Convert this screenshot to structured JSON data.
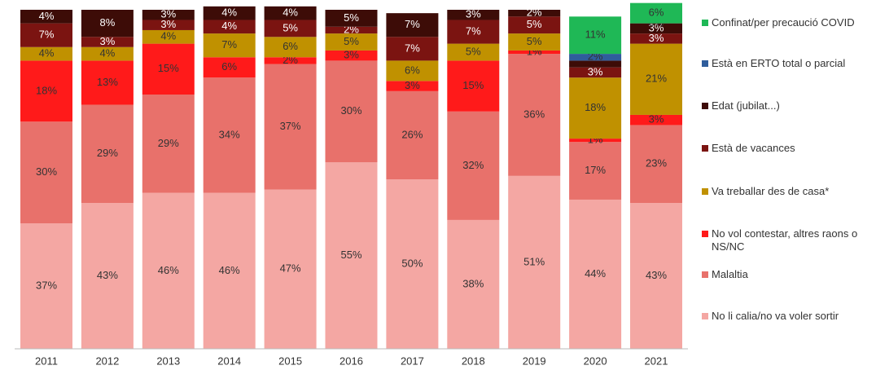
{
  "chart_data": {
    "type": "stacked_bar",
    "categories": [
      "2011",
      "2012",
      "2013",
      "2014",
      "2015",
      "2016",
      "2017",
      "2018",
      "2019",
      "2020",
      "2021"
    ],
    "ylim": [
      0,
      100
    ],
    "series": [
      {
        "name": "No li calia/no va voler sortir",
        "color": "#f4a7a3",
        "values": [
          37,
          43,
          46,
          46,
          47,
          55,
          50,
          38,
          51,
          44,
          43
        ],
        "value_labels": [
          "37%",
          "43%",
          "46%",
          "46%",
          "47%",
          "55%",
          "50%",
          "38%",
          "51%",
          "44%",
          "43%"
        ]
      },
      {
        "name": "Malaltia",
        "color": "#e8716b",
        "values": [
          30,
          29,
          29,
          34,
          37,
          30,
          26,
          32,
          36,
          17,
          23
        ],
        "value_labels": [
          "30%",
          "29%",
          "29%",
          "34%",
          "37%",
          "30%",
          "26%",
          "32%",
          "36%",
          "17%",
          "23%"
        ]
      },
      {
        "name": "No vol contestar, altres raons o NS/NC",
        "color": "#ff1a1a",
        "values": [
          18,
          13,
          15,
          6,
          2,
          3,
          3,
          15,
          1,
          1,
          3
        ],
        "value_labels": [
          "18%",
          "13%",
          "15%",
          "6%",
          "2%",
          "3%",
          "3%",
          "15%",
          "1%",
          "1%",
          "3%"
        ]
      },
      {
        "name": "Va treballar des de casa*",
        "color": "#c09100",
        "values": [
          4,
          4,
          4,
          7,
          6,
          5,
          6,
          5,
          5,
          18,
          21
        ],
        "value_labels": [
          "4%",
          "4%",
          "4%",
          "7%",
          "6%",
          "5%",
          "6%",
          "5%",
          "5%",
          "18%",
          "21%"
        ]
      },
      {
        "name": "Està de vacances",
        "color": "#7b1411",
        "values": [
          7,
          3,
          3,
          4,
          5,
          2,
          7,
          7,
          5,
          3,
          3
        ],
        "value_labels": [
          "7%",
          "3%",
          "3%",
          "4%",
          "5%",
          "2%",
          "7%",
          "7%",
          "5%",
          "3%",
          "3%"
        ]
      },
      {
        "name": "Edat (jubilat...)",
        "color": "#3d0c07",
        "values": [
          4,
          8,
          3,
          4,
          4,
          5,
          7,
          3,
          2,
          2,
          3
        ],
        "value_labels": [
          "4%",
          "8%",
          "3%",
          "4%",
          "4%",
          "5%",
          "7%",
          "3%",
          "2%",
          null,
          "3%"
        ]
      },
      {
        "name": "Està en ERTO total o parcial",
        "color": "#2f5d9c",
        "values": [
          null,
          null,
          null,
          null,
          null,
          null,
          null,
          null,
          null,
          2,
          0
        ],
        "value_labels": [
          null,
          null,
          null,
          null,
          null,
          null,
          null,
          null,
          null,
          "2%",
          "0%"
        ]
      },
      {
        "name": "Confinat/per precaució COVID",
        "color": "#1fb856",
        "values": [
          null,
          null,
          null,
          null,
          null,
          null,
          null,
          null,
          null,
          11,
          6
        ],
        "value_labels": [
          null,
          null,
          null,
          null,
          null,
          null,
          null,
          null,
          null,
          "11%",
          "6%"
        ]
      }
    ]
  }
}
